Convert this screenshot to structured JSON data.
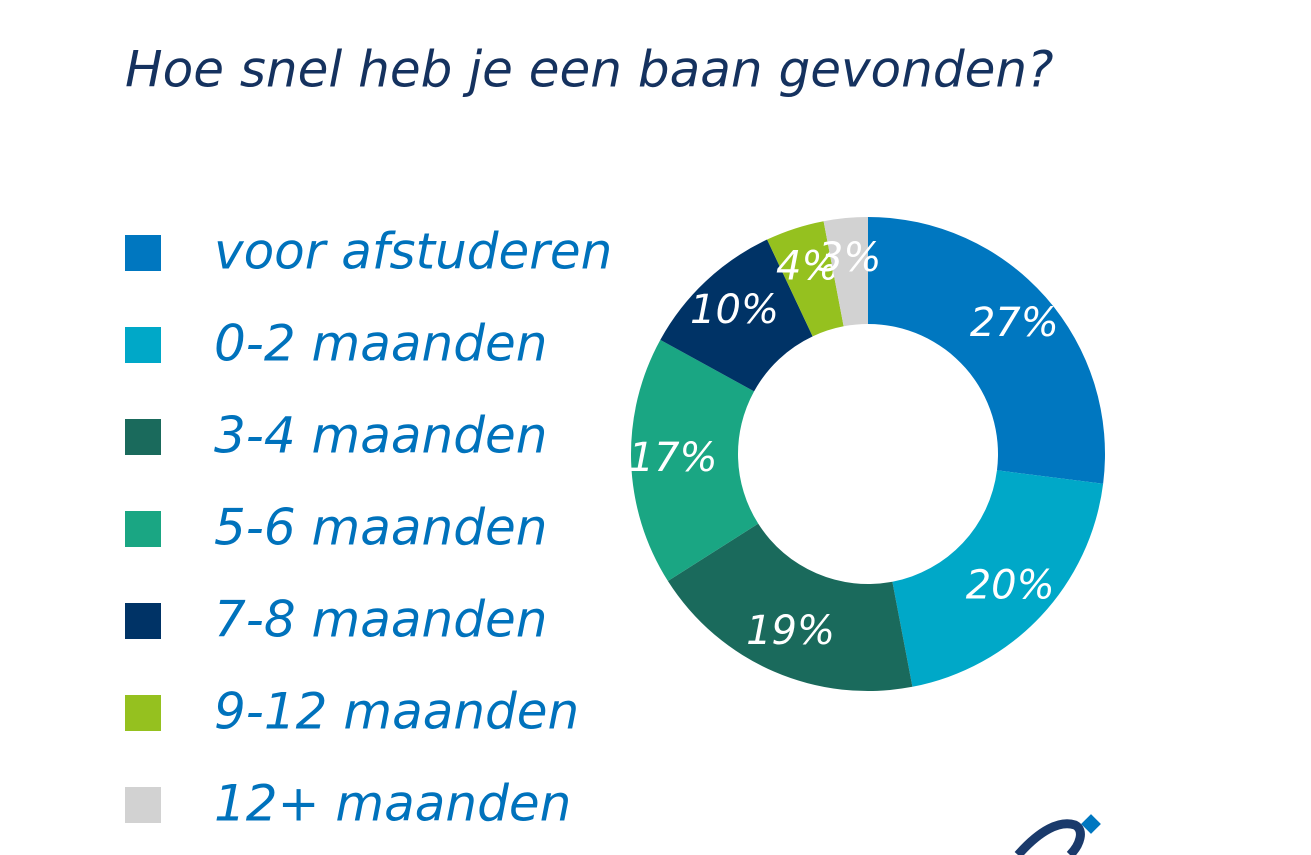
{
  "chart_data": {
    "type": "donut",
    "title": "Hoe snel heb je een baan gevonden?",
    "categories": [
      "voor afstuderen",
      "0-2 maanden",
      "3-4 maanden",
      "5-6 maanden",
      "7-8 maanden",
      "9-12 maanden",
      "12+ maanden"
    ],
    "values": [
      27,
      20,
      19,
      17,
      10,
      4,
      3
    ],
    "value_labels": [
      "27%",
      "20%",
      "19%",
      "17%",
      "10%",
      "4%",
      "3%"
    ],
    "colors": [
      "#0077c0",
      "#00a8c8",
      "#1a6a5c",
      "#1aa683",
      "#003366",
      "#95c11f",
      "#d2d2d2"
    ],
    "legend": "left"
  }
}
